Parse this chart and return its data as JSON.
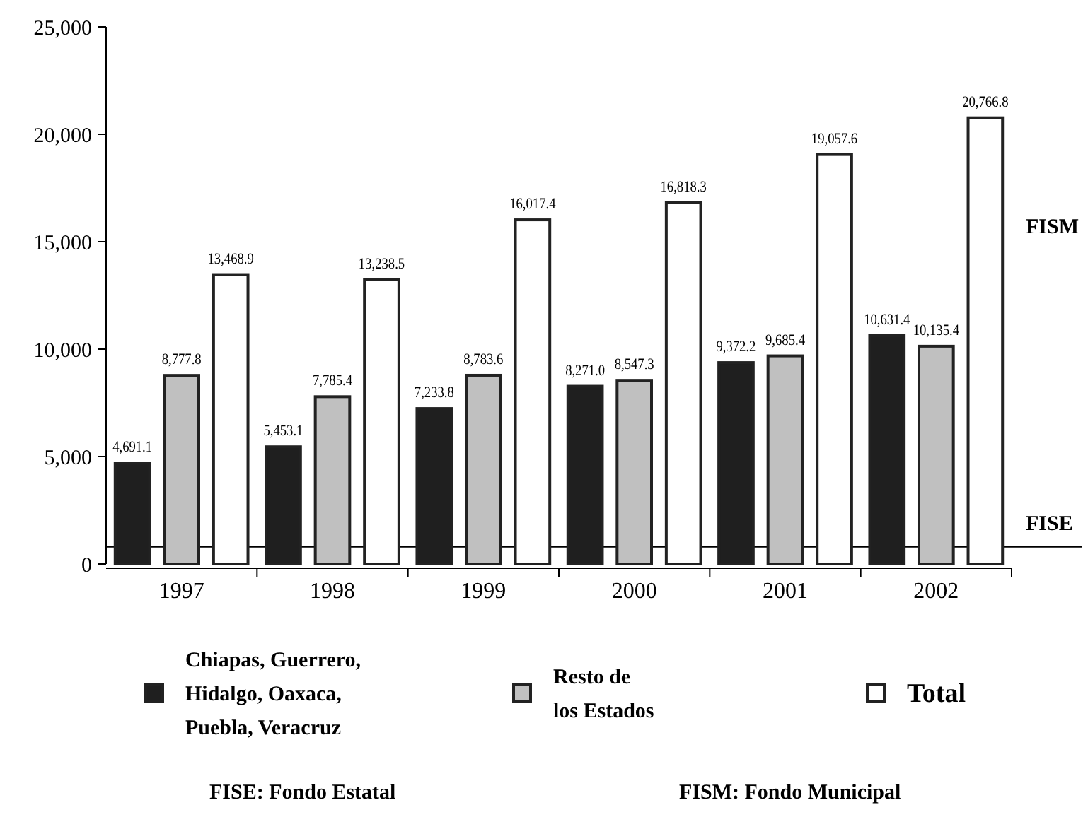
{
  "chart_data": {
    "type": "bar",
    "categories": [
      "1997",
      "1998",
      "1999",
      "2000",
      "2001",
      "2002"
    ],
    "series": [
      {
        "name": "Chiapas, Guerrero, Hidalgo, Oaxaca, Puebla, Veracruz",
        "color": "#1f1f1f",
        "values": [
          4691.1,
          5453.1,
          7233.8,
          8271.0,
          9372.2,
          10631.4
        ]
      },
      {
        "name": "Resto de los Estados",
        "color": "#c0c0c0",
        "values": [
          8777.8,
          7785.4,
          8783.6,
          8547.3,
          9685.4,
          10135.4
        ]
      },
      {
        "name": "Total",
        "color": "#ffffff",
        "values": [
          13468.9,
          13238.5,
          16017.4,
          16818.3,
          19057.6,
          20766.8
        ]
      }
    ],
    "ylim": [
      0,
      25000
    ],
    "yticks": [
      {
        "value": 0,
        "label": "0"
      },
      {
        "value": 5000,
        "label": "5,000"
      },
      {
        "value": 10000,
        "label": "10,000"
      },
      {
        "value": 15000,
        "label": "15,000"
      },
      {
        "value": 20000,
        "label": "20,000"
      },
      {
        "value": 25000,
        "label": "25,000"
      }
    ],
    "value_labels": [
      [
        "4,691.1",
        "5,453.1",
        "7,233.8",
        "8,271.0",
        "9,372.2",
        "10,631.4"
      ],
      [
        "8,777.8",
        "7,785.4",
        "8,783.6",
        "8,547.3",
        "9,685.4",
        "10,135.4"
      ],
      [
        "13,468.9",
        "13,238.5",
        "16,017.4",
        "16,818.3",
        "19,057.6",
        "20,766.8"
      ]
    ],
    "ref_lines": [
      {
        "axis": "y",
        "value": 800,
        "label": "FISE",
        "color": "#000000"
      }
    ],
    "annotations": [
      "FISM",
      "FISE: Fondo Estatal",
      "FISM: Fondo Municipal"
    ],
    "legend": "bottom",
    "grid": false
  }
}
